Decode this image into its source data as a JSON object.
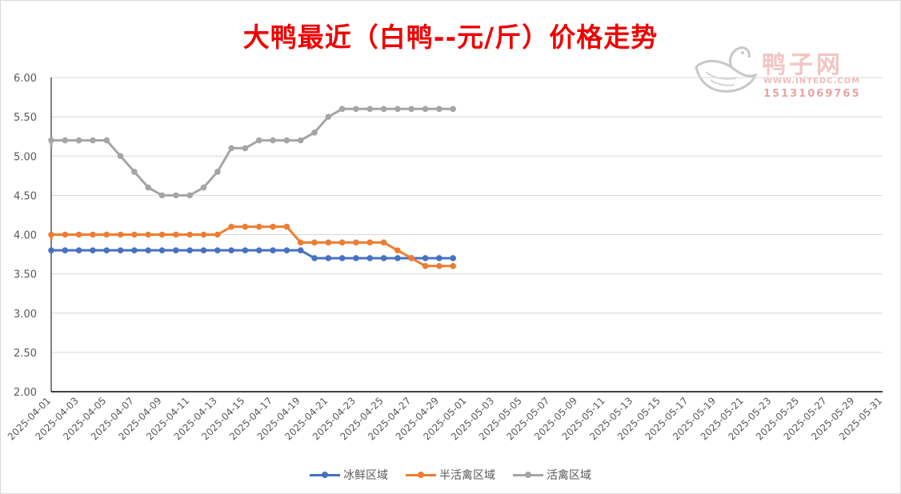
{
  "title": "大鸭最近（白鸭--元/斤）价格走势",
  "watermark": {
    "name": "鸭子网",
    "url": "WWW.INTEDC.COM",
    "phone": "15131069765",
    "icon": "duck-logo-icon"
  },
  "colors": {
    "title": "#ee0000",
    "series": [
      "#4472c4",
      "#ed7d31",
      "#a5a5a5"
    ],
    "grid": "#d9d9d9",
    "axis": "#000000"
  },
  "chart_data": {
    "type": "line",
    "title": "大鸭最近（白鸭--元/斤）价格走势",
    "xlabel": "",
    "ylabel": "",
    "ylim": [
      2.0,
      6.0
    ],
    "yticks": [
      "2.00",
      "2.50",
      "3.00",
      "3.50",
      "4.00",
      "4.50",
      "5.00",
      "5.50",
      "6.00"
    ],
    "x_range": [
      "2025-04-01",
      "2025-05-31"
    ],
    "x_tick_labels": [
      "2025-04-01",
      "2025-04-03",
      "2025-04-05",
      "2025-04-07",
      "2025-04-09",
      "2025-04-11",
      "2025-04-13",
      "2025-04-15",
      "2025-04-17",
      "2025-04-19",
      "2025-04-21",
      "2025-04-23",
      "2025-04-25",
      "2025-04-27",
      "2025-04-29",
      "2025-05-01",
      "2025-05-03",
      "2025-05-05",
      "2025-05-07",
      "2025-05-09",
      "2025-05-11",
      "2025-05-13",
      "2025-05-15",
      "2025-05-17",
      "2025-05-19",
      "2025-05-21",
      "2025-05-23",
      "2025-05-25",
      "2025-05-27",
      "2025-05-29",
      "2025-05-31"
    ],
    "grid": true,
    "legend_position": "bottom",
    "x": [
      "2025-04-01",
      "2025-04-02",
      "2025-04-03",
      "2025-04-04",
      "2025-04-05",
      "2025-04-06",
      "2025-04-07",
      "2025-04-08",
      "2025-04-09",
      "2025-04-10",
      "2025-04-11",
      "2025-04-12",
      "2025-04-13",
      "2025-04-14",
      "2025-04-15",
      "2025-04-16",
      "2025-04-17",
      "2025-04-18",
      "2025-04-19",
      "2025-04-20",
      "2025-04-21",
      "2025-04-22",
      "2025-04-23",
      "2025-04-24",
      "2025-04-25",
      "2025-04-26",
      "2025-04-27",
      "2025-04-28",
      "2025-04-29",
      "2025-04-30"
    ],
    "series": [
      {
        "name": "冰鲜区域",
        "values": [
          3.8,
          3.8,
          3.8,
          3.8,
          3.8,
          3.8,
          3.8,
          3.8,
          3.8,
          3.8,
          3.8,
          3.8,
          3.8,
          3.8,
          3.8,
          3.8,
          3.8,
          3.8,
          3.8,
          3.7,
          3.7,
          3.7,
          3.7,
          3.7,
          3.7,
          3.7,
          3.7,
          3.7,
          3.7,
          3.7
        ]
      },
      {
        "name": "半活禽区域",
        "values": [
          4.0,
          4.0,
          4.0,
          4.0,
          4.0,
          4.0,
          4.0,
          4.0,
          4.0,
          4.0,
          4.0,
          4.0,
          4.0,
          4.1,
          4.1,
          4.1,
          4.1,
          4.1,
          3.9,
          3.9,
          3.9,
          3.9,
          3.9,
          3.9,
          3.9,
          3.8,
          3.7,
          3.6,
          3.6,
          3.6
        ]
      },
      {
        "name": "活禽区域",
        "values": [
          5.2,
          5.2,
          5.2,
          5.2,
          5.2,
          5.0,
          4.8,
          4.6,
          4.5,
          4.5,
          4.5,
          4.6,
          4.8,
          5.1,
          5.1,
          5.2,
          5.2,
          5.2,
          5.2,
          5.3,
          5.5,
          5.6,
          5.6,
          5.6,
          5.6,
          5.6,
          5.6,
          5.6,
          5.6,
          5.6
        ]
      }
    ]
  }
}
